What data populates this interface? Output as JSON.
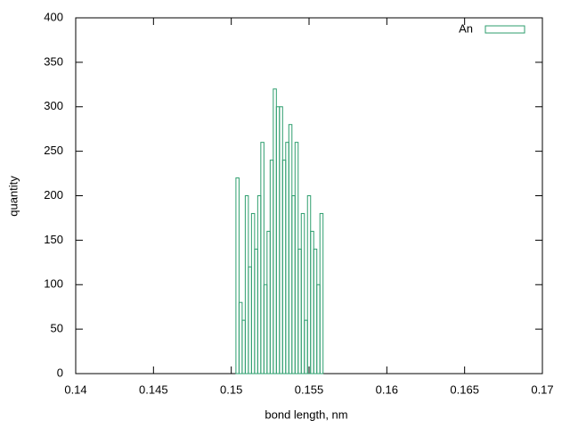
{
  "chart_data": {
    "type": "histogram",
    "xlabel": "bond length, nm",
    "ylabel": "quantity",
    "bins": [
      0.1503,
      0.1505,
      0.1507,
      0.1509,
      0.1511,
      0.1513,
      0.1515,
      0.1517,
      0.1519,
      0.1521,
      0.1523,
      0.1525,
      0.1527,
      0.1529,
      0.1531,
      0.1533,
      0.1535,
      0.1537,
      0.1539,
      0.1541,
      0.1543,
      0.1545,
      0.1547,
      0.1549,
      0.1551,
      0.1553,
      0.1555,
      0.1557,
      0.1559
    ],
    "series": [
      {
        "name": "An",
        "color": "#2e9e6e",
        "values": [
          220,
          80,
          60,
          200,
          120,
          180,
          140,
          200,
          260,
          100,
          160,
          240,
          320,
          300,
          300,
          240,
          260,
          280,
          200,
          260,
          140,
          180,
          60,
          200,
          160,
          140,
          100,
          180
        ]
      }
    ],
    "xlim": [
      0.14,
      0.17
    ],
    "xticks": [
      0.14,
      0.145,
      0.15,
      0.155,
      0.16,
      0.165,
      0.17
    ],
    "ylim": [
      0,
      400
    ],
    "yticks": [
      0,
      50,
      100,
      150,
      200,
      250,
      300,
      350,
      400
    ],
    "legend": "top-right",
    "grid": false
  }
}
